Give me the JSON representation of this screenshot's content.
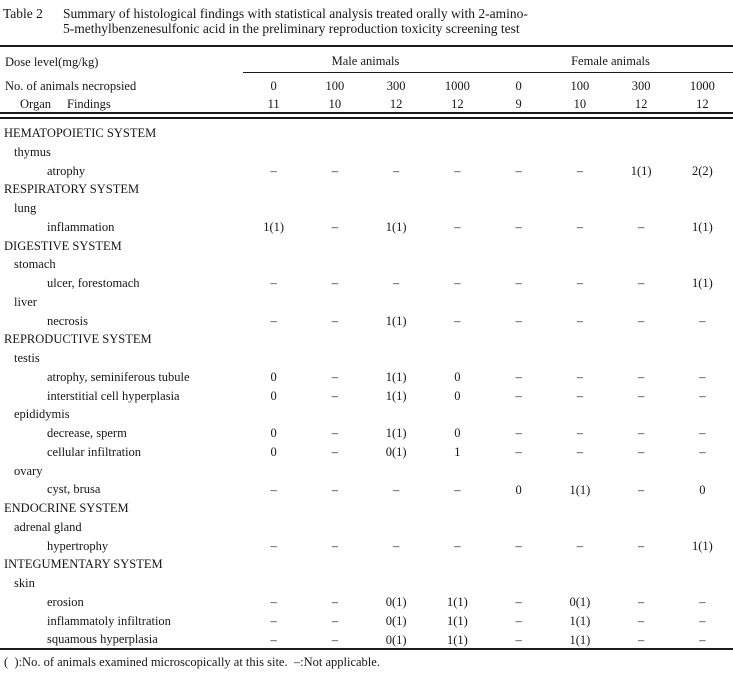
{
  "title": {
    "label": "Table 2",
    "caption_line1": "Summary of histological findings with statistical analysis treated orally with 2-amino-",
    "caption_line2": "5-methylbenzenesulfonic acid in the preliminary reproduction toxicity screening test"
  },
  "table": {
    "header": {
      "row1_label": "Dose level(mg/kg)",
      "row2_label": "No. of animals necropsied",
      "organ_label": "Organ",
      "findings_label": "Findings",
      "groups": [
        {
          "label": "Male animals",
          "doses": [
            "0",
            "100",
            "300",
            "1000"
          ],
          "counts": [
            "11",
            "10",
            "12",
            "12"
          ]
        },
        {
          "label": "Female animals",
          "doses": [
            "0",
            "100",
            "300",
            "1000"
          ],
          "counts": [
            "9",
            "10",
            "12",
            "12"
          ]
        }
      ]
    },
    "rows": [
      {
        "type": "system",
        "label": "HEMATOPOIETIC SYSTEM"
      },
      {
        "type": "organ",
        "label": "thymus"
      },
      {
        "type": "finding",
        "label": "atrophy",
        "values": [
          "–",
          "–",
          "–",
          "–",
          "–",
          "–",
          "1(1)",
          "2(2)"
        ]
      },
      {
        "type": "system",
        "label": "RESPIRATORY SYSTEM"
      },
      {
        "type": "organ",
        "label": "lung"
      },
      {
        "type": "finding",
        "label": "inflammation",
        "values": [
          "1(1)",
          "–",
          "1(1)",
          "–",
          "–",
          "–",
          "–",
          "1(1)"
        ]
      },
      {
        "type": "system",
        "label": "DIGESTIVE SYSTEM"
      },
      {
        "type": "organ",
        "label": "stomach"
      },
      {
        "type": "finding",
        "label": "ulcer, forestomach",
        "values": [
          "–",
          "–",
          "–",
          "–",
          "–",
          "–",
          "–",
          "1(1)"
        ]
      },
      {
        "type": "organ",
        "label": "liver"
      },
      {
        "type": "finding",
        "label": "necrosis",
        "values": [
          "–",
          "–",
          "1(1)",
          "–",
          "–",
          "–",
          "–",
          "–"
        ]
      },
      {
        "type": "system",
        "label": "REPRODUCTIVE SYSTEM"
      },
      {
        "type": "organ",
        "label": "testis"
      },
      {
        "type": "finding",
        "label": "atrophy, seminiferous tubule",
        "values": [
          "0",
          "–",
          "1(1)",
          "0",
          "–",
          "–",
          "–",
          "–"
        ]
      },
      {
        "type": "finding",
        "label": "interstitial cell hyperplasia",
        "values": [
          "0",
          "–",
          "1(1)",
          "0",
          "–",
          "–",
          "–",
          "–"
        ]
      },
      {
        "type": "organ",
        "label": "epididymis"
      },
      {
        "type": "finding",
        "label": "decrease, sperm",
        "values": [
          "0",
          "–",
          "1(1)",
          "0",
          "–",
          "–",
          "–",
          "–"
        ]
      },
      {
        "type": "finding",
        "label": "cellular infiltration",
        "values": [
          "0",
          "–",
          "0(1)",
          "1",
          "–",
          "–",
          "–",
          "–"
        ]
      },
      {
        "type": "organ",
        "label": "ovary"
      },
      {
        "type": "finding",
        "label": "cyst, brusa",
        "values": [
          "–",
          "–",
          "–",
          "–",
          "0",
          "1(1)",
          "–",
          "0"
        ]
      },
      {
        "type": "system",
        "label": "ENDOCRINE SYSTEM"
      },
      {
        "type": "organ",
        "label": "adrenal gland"
      },
      {
        "type": "finding",
        "label": "hypertrophy",
        "values": [
          "–",
          "–",
          "–",
          "–",
          "–",
          "–",
          "–",
          "1(1)"
        ]
      },
      {
        "type": "system",
        "label": "INTEGUMENTARY SYSTEM"
      },
      {
        "type": "organ",
        "label": "skin"
      },
      {
        "type": "finding",
        "label": "erosion",
        "values": [
          "–",
          "–",
          "0(1)",
          "1(1)",
          "–",
          "0(1)",
          "–",
          "–"
        ]
      },
      {
        "type": "finding",
        "label": "inflammatoly infiltration",
        "values": [
          "–",
          "–",
          "0(1)",
          "1(1)",
          "–",
          "1(1)",
          "–",
          "–"
        ]
      },
      {
        "type": "finding",
        "label": "squamous hyperplasia",
        "values": [
          "–",
          "–",
          "0(1)",
          "1(1)",
          "–",
          "1(1)",
          "–",
          "–"
        ]
      }
    ]
  },
  "footnote": "(  ):No. of animals examined microscopically at this site.  –:Not applicable."
}
